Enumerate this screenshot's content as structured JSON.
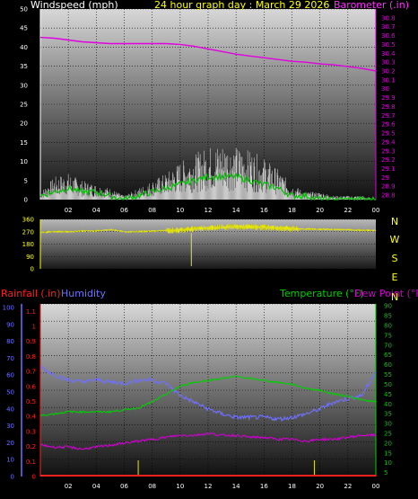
{
  "title": "24 hour graph day : March 29 2026",
  "colors": {
    "wind": "#e8e8e8",
    "wind_avg": "#00c000",
    "barometer": "#e000e0",
    "direction": "#e8e800",
    "rainfall": "#ff2020",
    "humidity": "#7070ff",
    "temperature": "#00d000",
    "dewpoint": "#d000d0",
    "label": "#ffffff",
    "baro_label": "#ff30ff",
    "title": "#ffff00"
  },
  "chart_data": [
    {
      "type": "line",
      "name": "wind-barometer",
      "ylabel": "Windspeed (mph)",
      "y2label": "Barometer (.in)",
      "ylim": [
        0,
        50
      ],
      "y2lim": [
        28.75,
        30.9
      ],
      "xlim": [
        0,
        24
      ],
      "yticks": [
        "0",
        "5",
        "10",
        "15",
        "20",
        "25",
        "30",
        "35",
        "40",
        "45",
        "50"
      ],
      "y2ticks": [
        "28.8",
        "28.9",
        "29",
        "29.1",
        "29.2",
        "29.3",
        "29.4",
        "29.5",
        "29.6",
        "29.7",
        "29.8",
        "29.9",
        "30",
        "30.1",
        "30.2",
        "30.3",
        "30.4",
        "30.5",
        "30.6",
        "30.7",
        "30.8"
      ],
      "xticks": [
        "02",
        "04",
        "06",
        "08",
        "10",
        "12",
        "14",
        "16",
        "18",
        "20",
        "22",
        "00"
      ],
      "barometer": {
        "x": [
          0,
          1,
          2,
          3,
          4,
          5,
          6,
          7,
          8,
          9,
          10,
          11,
          12,
          13,
          14,
          15,
          16,
          17,
          18,
          19,
          20,
          21,
          22,
          23,
          24
        ],
        "y": [
          30.58,
          30.57,
          30.55,
          30.53,
          30.52,
          30.51,
          30.51,
          30.51,
          30.51,
          30.51,
          30.5,
          30.48,
          30.45,
          30.42,
          30.39,
          30.37,
          30.35,
          30.33,
          30.31,
          30.3,
          30.28,
          30.27,
          30.25,
          30.23,
          30.2
        ]
      },
      "wind_gust": {
        "x": [
          0,
          1,
          2,
          3,
          4,
          5,
          6,
          7,
          8,
          9,
          10,
          11,
          12,
          13,
          14,
          15,
          16,
          17,
          18,
          19,
          20,
          21,
          22,
          23,
          24
        ],
        "y": [
          2,
          6,
          7,
          5,
          4,
          3,
          1,
          3,
          5,
          7,
          10,
          12,
          14,
          15,
          14,
          13,
          11,
          8,
          4,
          2,
          2,
          1,
          1,
          1,
          0
        ]
      },
      "wind_avg": {
        "x": [
          0,
          1,
          2,
          3,
          4,
          5,
          6,
          7,
          8,
          9,
          10,
          11,
          12,
          13,
          14,
          15,
          16,
          17,
          18,
          19,
          20,
          21,
          22,
          23,
          24
        ],
        "y": [
          1,
          2,
          3,
          2,
          2,
          1,
          0,
          1,
          2,
          3,
          4,
          5,
          6,
          6,
          6,
          5,
          4,
          3,
          1,
          1,
          0,
          0,
          0,
          0,
          0
        ]
      }
    },
    {
      "type": "scatter",
      "name": "wind-direction",
      "ylim": [
        0,
        360
      ],
      "yticks": [
        "0",
        "90",
        "180",
        "270",
        "360"
      ],
      "compass": [
        "N",
        "W",
        "S",
        "E",
        "N"
      ],
      "xticks": [
        "02",
        "04",
        "06",
        "08",
        "10",
        "12",
        "14",
        "16",
        "18",
        "20",
        "22",
        "00"
      ],
      "direction": {
        "x": [
          0,
          1,
          2,
          3,
          4,
          5,
          6,
          7,
          8,
          9,
          10,
          11,
          12,
          13,
          14,
          15,
          16,
          17,
          18,
          19,
          20,
          21,
          22,
          23,
          24
        ],
        "y": [
          265,
          270,
          270,
          275,
          275,
          285,
          270,
          270,
          275,
          278,
          282,
          290,
          298,
          302,
          305,
          305,
          302,
          298,
          292,
          290,
          288,
          286,
          285,
          280,
          280
        ]
      }
    },
    {
      "type": "line",
      "name": "rain-humidity-temperature",
      "labels": {
        "rainfall": "Rainfall (.in)",
        "humidity": "Humidity",
        "temperature": "Temperature (°F)",
        "dewpoint": "Dew Point (°F)"
      },
      "humidity_ticks": [
        "0",
        "10",
        "20",
        "30",
        "40",
        "50",
        "60",
        "70",
        "80",
        "90",
        "100"
      ],
      "rain_ticks": [
        "0",
        "0.1",
        "0.2",
        "0.3",
        "0.4",
        "0.5",
        "0.6",
        "0.7",
        "0.8",
        "0.9",
        "1",
        "1.1"
      ],
      "temp_ticks": [
        "5",
        "10",
        "15",
        "20",
        "25",
        "30",
        "35",
        "40",
        "45",
        "50",
        "55",
        "60",
        "65",
        "70",
        "75",
        "80",
        "85",
        "90"
      ],
      "rain_lim": [
        0,
        1.15
      ],
      "temp_lim": [
        3,
        91
      ],
      "xticks": [
        "02",
        "04",
        "06",
        "08",
        "10",
        "12",
        "14",
        "16",
        "18",
        "20",
        "22",
        "00"
      ],
      "humidity": {
        "x": [
          0,
          1,
          2,
          3,
          4,
          5,
          6,
          7,
          8,
          9,
          10,
          11,
          12,
          13,
          14,
          15,
          16,
          17,
          18,
          19,
          20,
          21,
          22,
          23,
          24
        ],
        "y": [
          65,
          60,
          57,
          56,
          57,
          56,
          55,
          57,
          57,
          55,
          48,
          44,
          40,
          37,
          35,
          35,
          35,
          34,
          35,
          37,
          40,
          44,
          46,
          48,
          62
        ]
      },
      "temperature": {
        "x": [
          0,
          1,
          2,
          3,
          4,
          5,
          6,
          7,
          8,
          9,
          10,
          11,
          12,
          13,
          14,
          15,
          16,
          17,
          18,
          19,
          20,
          21,
          22,
          23,
          24
        ],
        "y": [
          34,
          35,
          36,
          36,
          36,
          36,
          37,
          38,
          41,
          45,
          49,
          51,
          52,
          53,
          54,
          53,
          52,
          51,
          50,
          48,
          47,
          45,
          44,
          42,
          41
        ]
      },
      "dewpoint": {
        "x": [
          0,
          1,
          2,
          3,
          4,
          5,
          6,
          7,
          8,
          9,
          10,
          11,
          12,
          13,
          14,
          15,
          16,
          17,
          18,
          19,
          20,
          21,
          22,
          23,
          24
        ],
        "y": [
          19,
          18,
          18,
          17,
          18,
          19,
          20,
          21,
          22,
          23,
          24,
          24,
          25,
          24,
          24,
          23,
          23,
          22,
          22,
          21,
          22,
          22,
          23,
          24,
          24
        ]
      },
      "rainfall": {
        "x": [
          0,
          6,
          12,
          18,
          24
        ],
        "y": [
          0,
          0,
          0,
          0,
          0
        ]
      },
      "rain_events_x": [
        7,
        19.6
      ]
    }
  ]
}
